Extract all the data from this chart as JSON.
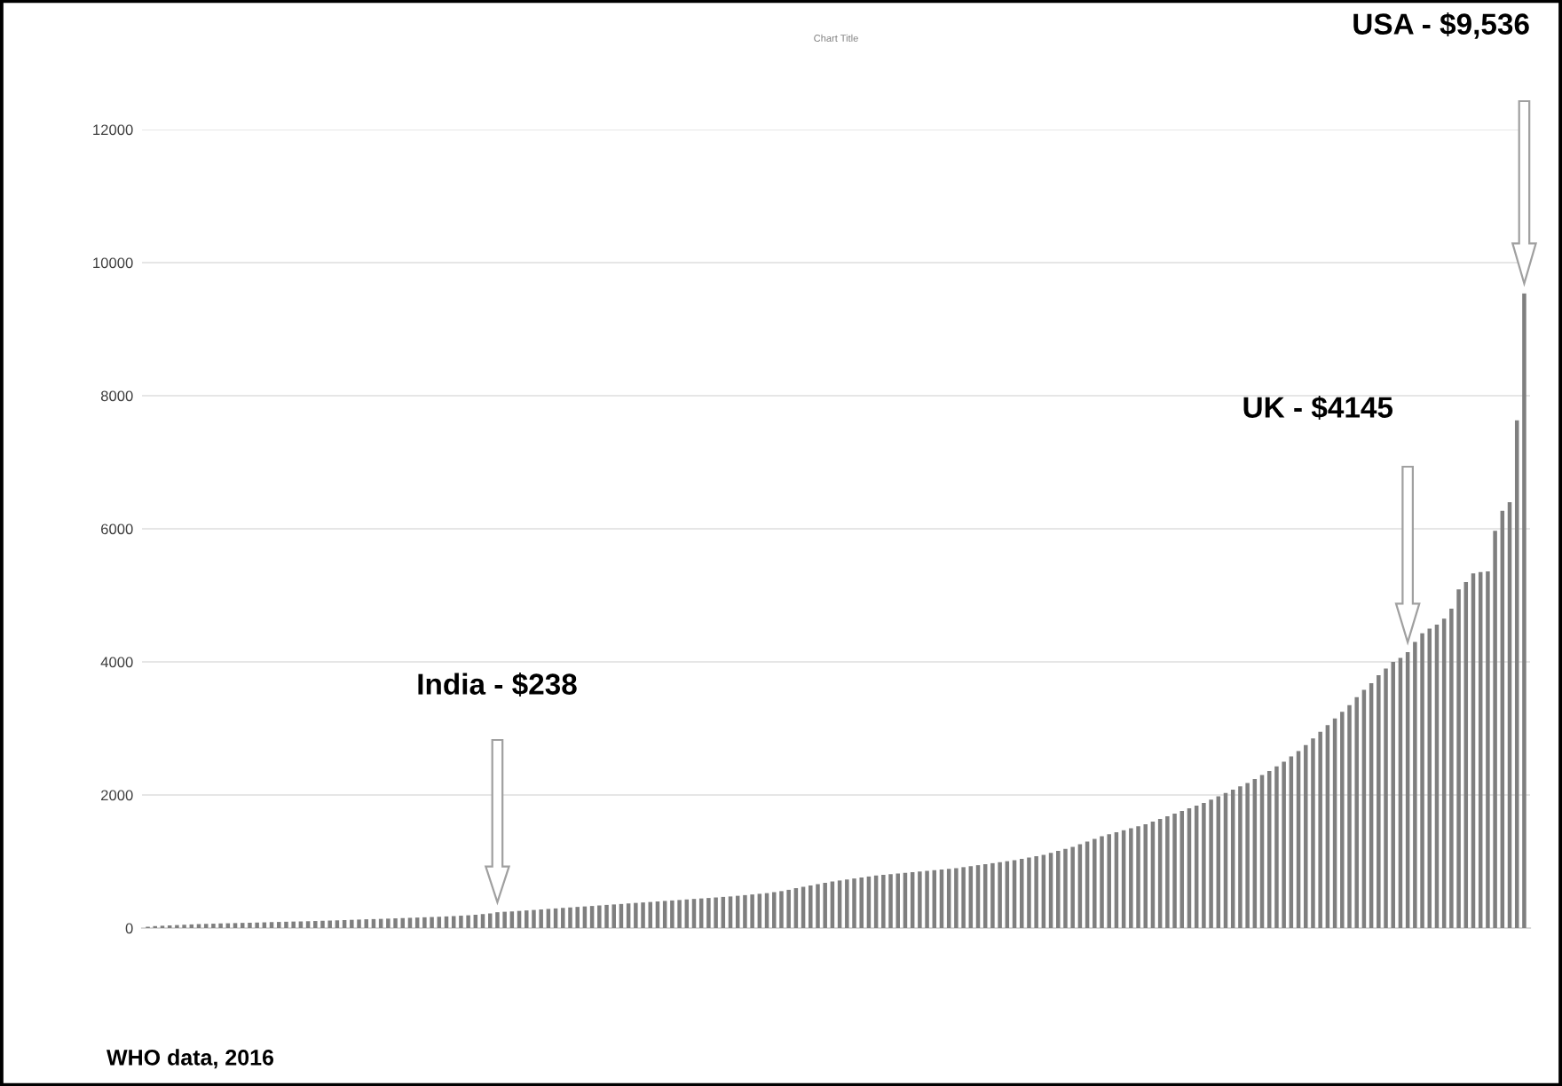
{
  "chart_data": {
    "type": "bar",
    "title": "Chart Title",
    "categories": [
      null,
      null,
      null,
      null,
      null,
      null,
      null,
      null,
      null,
      null,
      null,
      null,
      null,
      null,
      null,
      null,
      null,
      null,
      null,
      null,
      null,
      null,
      null,
      null,
      null,
      null,
      null,
      null,
      null,
      null,
      null,
      null,
      null,
      null,
      null,
      null,
      null,
      null,
      null,
      null,
      null,
      null,
      null,
      null,
      null,
      null,
      null,
      null,
      null,
      null,
      null,
      null,
      null,
      null,
      null,
      null,
      null,
      null,
      null,
      null,
      null,
      null,
      null,
      null,
      null,
      null,
      null,
      null,
      null,
      null,
      null,
      null,
      null,
      null,
      null,
      null,
      null,
      null,
      null,
      null,
      null,
      null,
      null,
      null,
      null,
      null,
      null,
      null,
      null,
      null,
      null,
      null,
      null,
      null,
      null,
      null,
      null,
      null,
      null,
      null,
      null,
      null,
      null,
      null,
      null,
      null,
      null,
      null,
      null,
      null,
      null,
      null,
      null,
      null,
      null,
      null,
      null,
      null,
      null,
      null,
      null,
      null,
      null,
      null,
      null,
      null,
      null,
      null,
      null,
      null,
      null,
      null,
      null,
      null,
      null,
      null,
      null,
      null,
      null,
      null,
      null,
      null,
      null,
      null,
      null,
      null,
      null,
      null,
      null,
      null,
      null,
      null,
      null,
      null,
      null,
      null,
      null,
      null,
      null,
      null,
      null,
      null,
      null,
      null,
      null,
      null,
      null,
      null,
      null,
      null,
      null,
      null,
      null,
      null,
      null,
      null,
      null,
      null,
      null,
      null,
      null,
      null,
      null,
      null,
      null,
      null,
      null,
      null,
      null,
      null
    ],
    "values": [
      20,
      30,
      35,
      40,
      45,
      50,
      55,
      60,
      63,
      66,
      70,
      72,
      75,
      78,
      80,
      83,
      86,
      90,
      92,
      95,
      98,
      100,
      103,
      106,
      110,
      113,
      116,
      120,
      124,
      128,
      132,
      135,
      138,
      142,
      146,
      150,
      154,
      158,
      162,
      166,
      170,
      175,
      180,
      186,
      192,
      200,
      210,
      220,
      238,
      245,
      250,
      258,
      265,
      272,
      280,
      288,
      295,
      303,
      310,
      318,
      325,
      332,
      340,
      348,
      355,
      362,
      370,
      378,
      385,
      392,
      400,
      408,
      415,
      422,
      430,
      438,
      445,
      452,
      460,
      468,
      475,
      485,
      495,
      505,
      515,
      525,
      540,
      555,
      575,
      600,
      620,
      640,
      660,
      680,
      700,
      715,
      730,
      745,
      760,
      775,
      790,
      800,
      810,
      820,
      830,
      840,
      850,
      860,
      870,
      880,
      890,
      900,
      915,
      930,
      945,
      960,
      975,
      990,
      1005,
      1020,
      1040,
      1060,
      1080,
      1100,
      1130,
      1160,
      1190,
      1220,
      1260,
      1300,
      1340,
      1380,
      1410,
      1440,
      1470,
      1500,
      1530,
      1560,
      1600,
      1640,
      1680,
      1720,
      1760,
      1800,
      1840,
      1880,
      1930,
      1980,
      2030,
      2080,
      2130,
      2180,
      2240,
      2300,
      2360,
      2430,
      2500,
      2580,
      2660,
      2750,
      2850,
      2950,
      3050,
      3150,
      3250,
      3350,
      3470,
      3580,
      3680,
      3800,
      3900,
      4000,
      4060,
      4145,
      4300,
      4430,
      4500,
      4560,
      4650,
      4800,
      5090,
      5200,
      5330,
      5350,
      5360,
      5970,
      6270,
      6400,
      7630,
      9536
    ],
    "color": "#7f7f7f",
    "ylim": [
      0,
      12000
    ],
    "yticks": [
      0,
      2000,
      4000,
      6000,
      8000,
      10000,
      12000
    ],
    "grid": "y",
    "annotations": [
      "USA - $9,536",
      "UK - $4145",
      "India - $238",
      "WHO data, 2016"
    ]
  }
}
